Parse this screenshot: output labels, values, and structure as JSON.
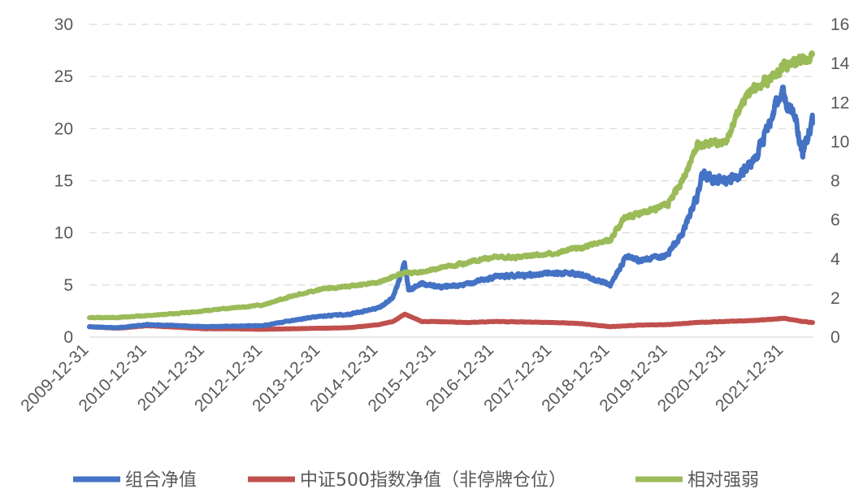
{
  "chart_data": {
    "type": "line",
    "title": "",
    "xlabel": "",
    "ylabel": "",
    "y2label": "",
    "ylim": [
      0,
      30
    ],
    "y2lim": [
      0,
      16
    ],
    "yticks": [
      "0",
      "5",
      "10",
      "15",
      "20",
      "25",
      "30"
    ],
    "y2ticks": [
      "0",
      "2",
      "4",
      "6",
      "8",
      "10",
      "12",
      "14",
      "16"
    ],
    "x_ticks": [
      "2009-12-31",
      "2010-12-31",
      "2011-12-31",
      "2012-12-31",
      "2013-12-31",
      "2014-12-31",
      "2015-12-31",
      "2016-12-31",
      "2017-12-31",
      "2018-12-31",
      "2019-12-31",
      "2020-12-31",
      "2021-12-31"
    ],
    "grid": true,
    "legend_position": "bottom",
    "series": [
      {
        "name": "组合净值",
        "axis": "left",
        "color": "#4472c4",
        "x": [
          "2009-12-31",
          "2010-06-30",
          "2010-12-31",
          "2011-06-30",
          "2011-12-31",
          "2012-06-30",
          "2012-12-31",
          "2013-06-30",
          "2013-12-31",
          "2014-06-30",
          "2014-12-31",
          "2015-03-31",
          "2015-06-12",
          "2015-07-08",
          "2015-09-30",
          "2015-12-31",
          "2016-06-30",
          "2016-12-31",
          "2017-06-30",
          "2017-12-31",
          "2018-06-30",
          "2018-12-31",
          "2019-04-15",
          "2019-06-30",
          "2019-12-31",
          "2020-03-31",
          "2020-06-30",
          "2020-07-31",
          "2020-12-31",
          "2021-03-31",
          "2021-06-30",
          "2021-09-30",
          "2021-12-15",
          "2022-01-31",
          "2022-03-15",
          "2022-04-27",
          "2022-06-30"
        ],
        "values": [
          1.0,
          0.9,
          1.2,
          1.1,
          1.0,
          1.05,
          1.1,
          1.6,
          2.0,
          2.2,
          2.8,
          3.8,
          7.0,
          4.5,
          5.2,
          4.8,
          5.0,
          5.8,
          5.9,
          6.2,
          6.0,
          5.0,
          7.8,
          7.3,
          8.0,
          10.0,
          13.5,
          15.5,
          15.0,
          15.5,
          17.0,
          20.5,
          23.5,
          22.0,
          21.0,
          17.5,
          20.5
        ]
      },
      {
        "name": "中证500指数净值（非停牌仓位）",
        "axis": "left",
        "color": "#c0504d",
        "x": [
          "2009-12-31",
          "2010-06-30",
          "2010-12-31",
          "2011-06-30",
          "2011-12-31",
          "2012-06-30",
          "2012-12-31",
          "2013-06-30",
          "2013-12-31",
          "2014-06-30",
          "2014-12-31",
          "2015-03-31",
          "2015-06-12",
          "2015-09-30",
          "2015-12-31",
          "2016-06-30",
          "2016-12-31",
          "2017-06-30",
          "2017-12-31",
          "2018-06-30",
          "2018-12-31",
          "2019-06-30",
          "2019-12-31",
          "2020-06-30",
          "2020-12-31",
          "2021-06-30",
          "2021-12-31",
          "2022-04-27",
          "2022-06-30"
        ],
        "values": [
          1.0,
          0.85,
          1.1,
          0.95,
          0.8,
          0.8,
          0.75,
          0.8,
          0.85,
          0.9,
          1.2,
          1.5,
          2.2,
          1.5,
          1.5,
          1.4,
          1.5,
          1.45,
          1.4,
          1.3,
          1.0,
          1.15,
          1.2,
          1.4,
          1.5,
          1.6,
          1.8,
          1.5,
          1.4
        ]
      },
      {
        "name": "相对强弱",
        "axis": "right",
        "color": "#9bbb59",
        "x": [
          "2009-12-31",
          "2010-06-30",
          "2010-12-31",
          "2011-06-30",
          "2011-12-31",
          "2012-06-30",
          "2012-12-31",
          "2013-06-30",
          "2013-12-31",
          "2014-06-30",
          "2014-12-31",
          "2015-06-12",
          "2015-09-30",
          "2015-12-31",
          "2016-06-30",
          "2016-12-31",
          "2017-06-30",
          "2017-12-31",
          "2018-06-30",
          "2018-12-31",
          "2019-03-31",
          "2019-06-30",
          "2019-12-31",
          "2020-03-31",
          "2020-06-30",
          "2020-12-31",
          "2021-03-31",
          "2021-06-30",
          "2021-09-30",
          "2021-12-31",
          "2022-03-31",
          "2022-06-30"
        ],
        "values": [
          1.0,
          1.0,
          1.1,
          1.2,
          1.35,
          1.5,
          1.65,
          2.1,
          2.45,
          2.6,
          2.8,
          3.3,
          3.3,
          3.5,
          3.8,
          4.1,
          4.1,
          4.3,
          4.6,
          5.0,
          6.1,
          6.3,
          6.8,
          8.0,
          9.8,
          10.0,
          11.8,
          12.8,
          13.2,
          13.8,
          14.0,
          14.5
        ]
      }
    ]
  }
}
